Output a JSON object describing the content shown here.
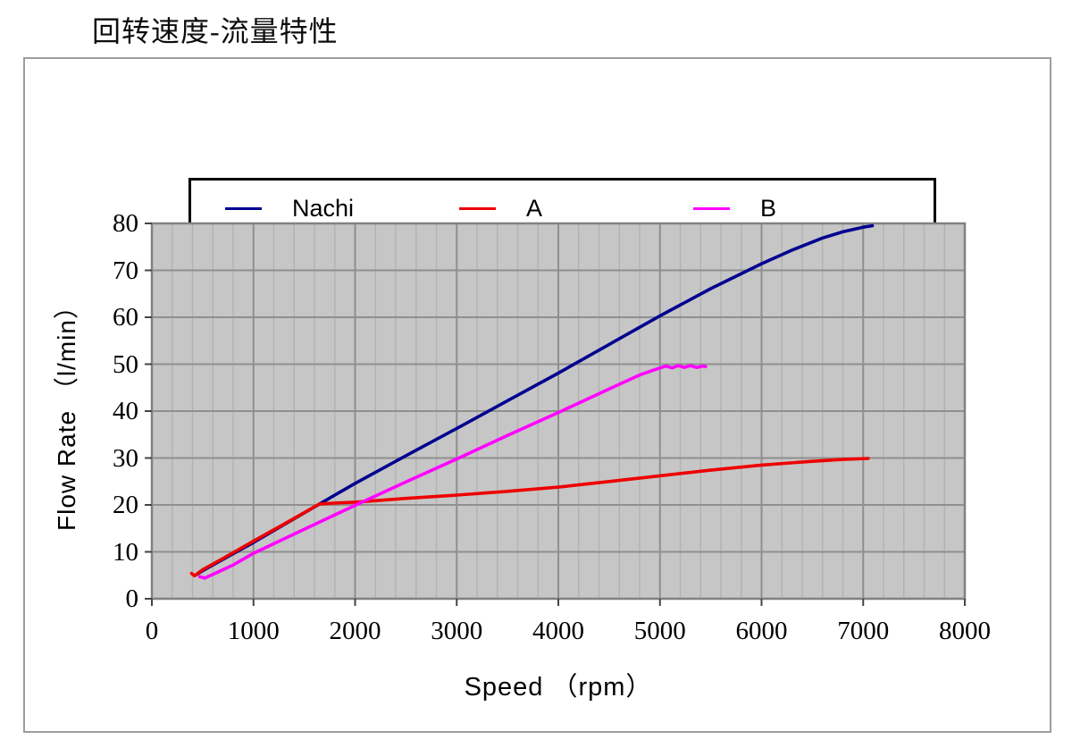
{
  "page": {
    "title": "回转速度-流量特性"
  },
  "chart_data": {
    "type": "line",
    "title": "回转速度-流量特性",
    "xlabel": "Speed （rpm）",
    "ylabel": "Flow Rate （l/min）",
    "xlim": [
      0,
      8000
    ],
    "ylim": [
      0,
      80
    ],
    "xticks": [
      0,
      1000,
      2000,
      3000,
      4000,
      5000,
      6000,
      7000,
      8000
    ],
    "yticks": [
      0,
      10,
      20,
      30,
      40,
      50,
      60,
      70,
      80
    ],
    "x_minor_step": 200,
    "grid": true,
    "legend_position": "top",
    "colors": {
      "plot_bg": "#c6c6c6",
      "major_grid": "#8f8f8f",
      "minor_grid": "#b2b2b2",
      "plot_border": "#818181",
      "tick": "#444444"
    },
    "series": [
      {
        "name": "Nachi",
        "color": "#000090",
        "points": [
          [
            450,
            5.3
          ],
          [
            500,
            6.0
          ],
          [
            700,
            8.4
          ],
          [
            1000,
            12.0
          ],
          [
            1300,
            15.8
          ],
          [
            1650,
            20.2
          ],
          [
            2000,
            24.6
          ],
          [
            2500,
            30.5
          ],
          [
            3000,
            36.3
          ],
          [
            3500,
            42.2
          ],
          [
            4000,
            48.1
          ],
          [
            4500,
            54.2
          ],
          [
            5000,
            60.3
          ],
          [
            5500,
            66.1
          ],
          [
            6000,
            71.4
          ],
          [
            6300,
            74.3
          ],
          [
            6600,
            76.9
          ],
          [
            6800,
            78.2
          ],
          [
            7000,
            79.2
          ],
          [
            7090,
            79.5
          ]
        ]
      },
      {
        "name": "A",
        "color": "#ee0000",
        "points": [
          [
            390,
            5.4
          ],
          [
            420,
            4.9
          ],
          [
            500,
            6.2
          ],
          [
            700,
            8.6
          ],
          [
            1000,
            12.3
          ],
          [
            1300,
            15.9
          ],
          [
            1650,
            20.2
          ],
          [
            1800,
            20.4
          ],
          [
            2000,
            20.6
          ],
          [
            2500,
            21.4
          ],
          [
            3000,
            22.1
          ],
          [
            3500,
            22.9
          ],
          [
            4000,
            23.8
          ],
          [
            4500,
            25.0
          ],
          [
            5000,
            26.2
          ],
          [
            5500,
            27.4
          ],
          [
            6000,
            28.5
          ],
          [
            6500,
            29.3
          ],
          [
            6800,
            29.7
          ],
          [
            7050,
            29.9
          ]
        ]
      },
      {
        "name": "B",
        "color": "#ff00ff",
        "points": [
          [
            470,
            4.7
          ],
          [
            520,
            4.4
          ],
          [
            600,
            5.2
          ],
          [
            800,
            7.2
          ],
          [
            1000,
            9.7
          ],
          [
            1500,
            14.8
          ],
          [
            2000,
            19.9
          ],
          [
            2500,
            24.9
          ],
          [
            3000,
            29.8
          ],
          [
            3500,
            34.8
          ],
          [
            4000,
            39.7
          ],
          [
            4500,
            44.7
          ],
          [
            4800,
            47.7
          ],
          [
            5000,
            49.2
          ],
          [
            5060,
            49.6
          ],
          [
            5120,
            49.2
          ],
          [
            5180,
            49.7
          ],
          [
            5240,
            49.3
          ],
          [
            5300,
            49.7
          ],
          [
            5360,
            49.3
          ],
          [
            5420,
            49.6
          ],
          [
            5450,
            49.5
          ]
        ]
      }
    ]
  }
}
